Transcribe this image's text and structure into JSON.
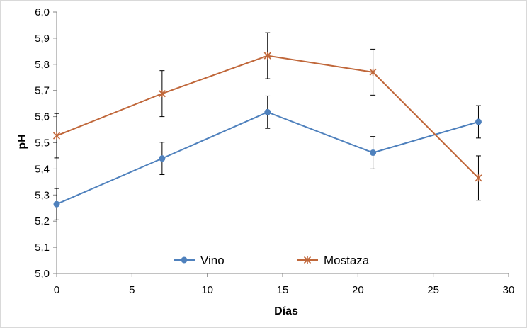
{
  "chart_data": {
    "type": "line",
    "title": "",
    "xlabel": "Días",
    "ylabel": "pH",
    "xlim": [
      0,
      30
    ],
    "ylim": [
      5.0,
      6.0
    ],
    "xticks": [
      "0",
      "5",
      "10",
      "15",
      "20",
      "25",
      "30"
    ],
    "yticks": [
      "5,0",
      "5,1",
      "5,2",
      "5,3",
      "5,4",
      "5,5",
      "5,6",
      "5,7",
      "5,8",
      "5,9",
      "6,0"
    ],
    "grid": false,
    "legend_position": "bottom-center",
    "series": [
      {
        "name": "Vino",
        "color": "#4f81bd",
        "marker": "circle",
        "x": [
          0,
          7,
          14,
          21,
          28
        ],
        "y": [
          5.265,
          5.44,
          5.617,
          5.462,
          5.58
        ],
        "err": [
          0.06,
          0.062,
          0.062,
          0.062,
          0.062
        ]
      },
      {
        "name": "Mostaza",
        "color": "#c0673a",
        "marker": "star",
        "x": [
          0,
          7,
          14,
          21,
          28
        ],
        "y": [
          5.527,
          5.688,
          5.833,
          5.77,
          5.365
        ],
        "err": [
          0.085,
          0.088,
          0.088,
          0.088,
          0.085
        ]
      }
    ]
  }
}
